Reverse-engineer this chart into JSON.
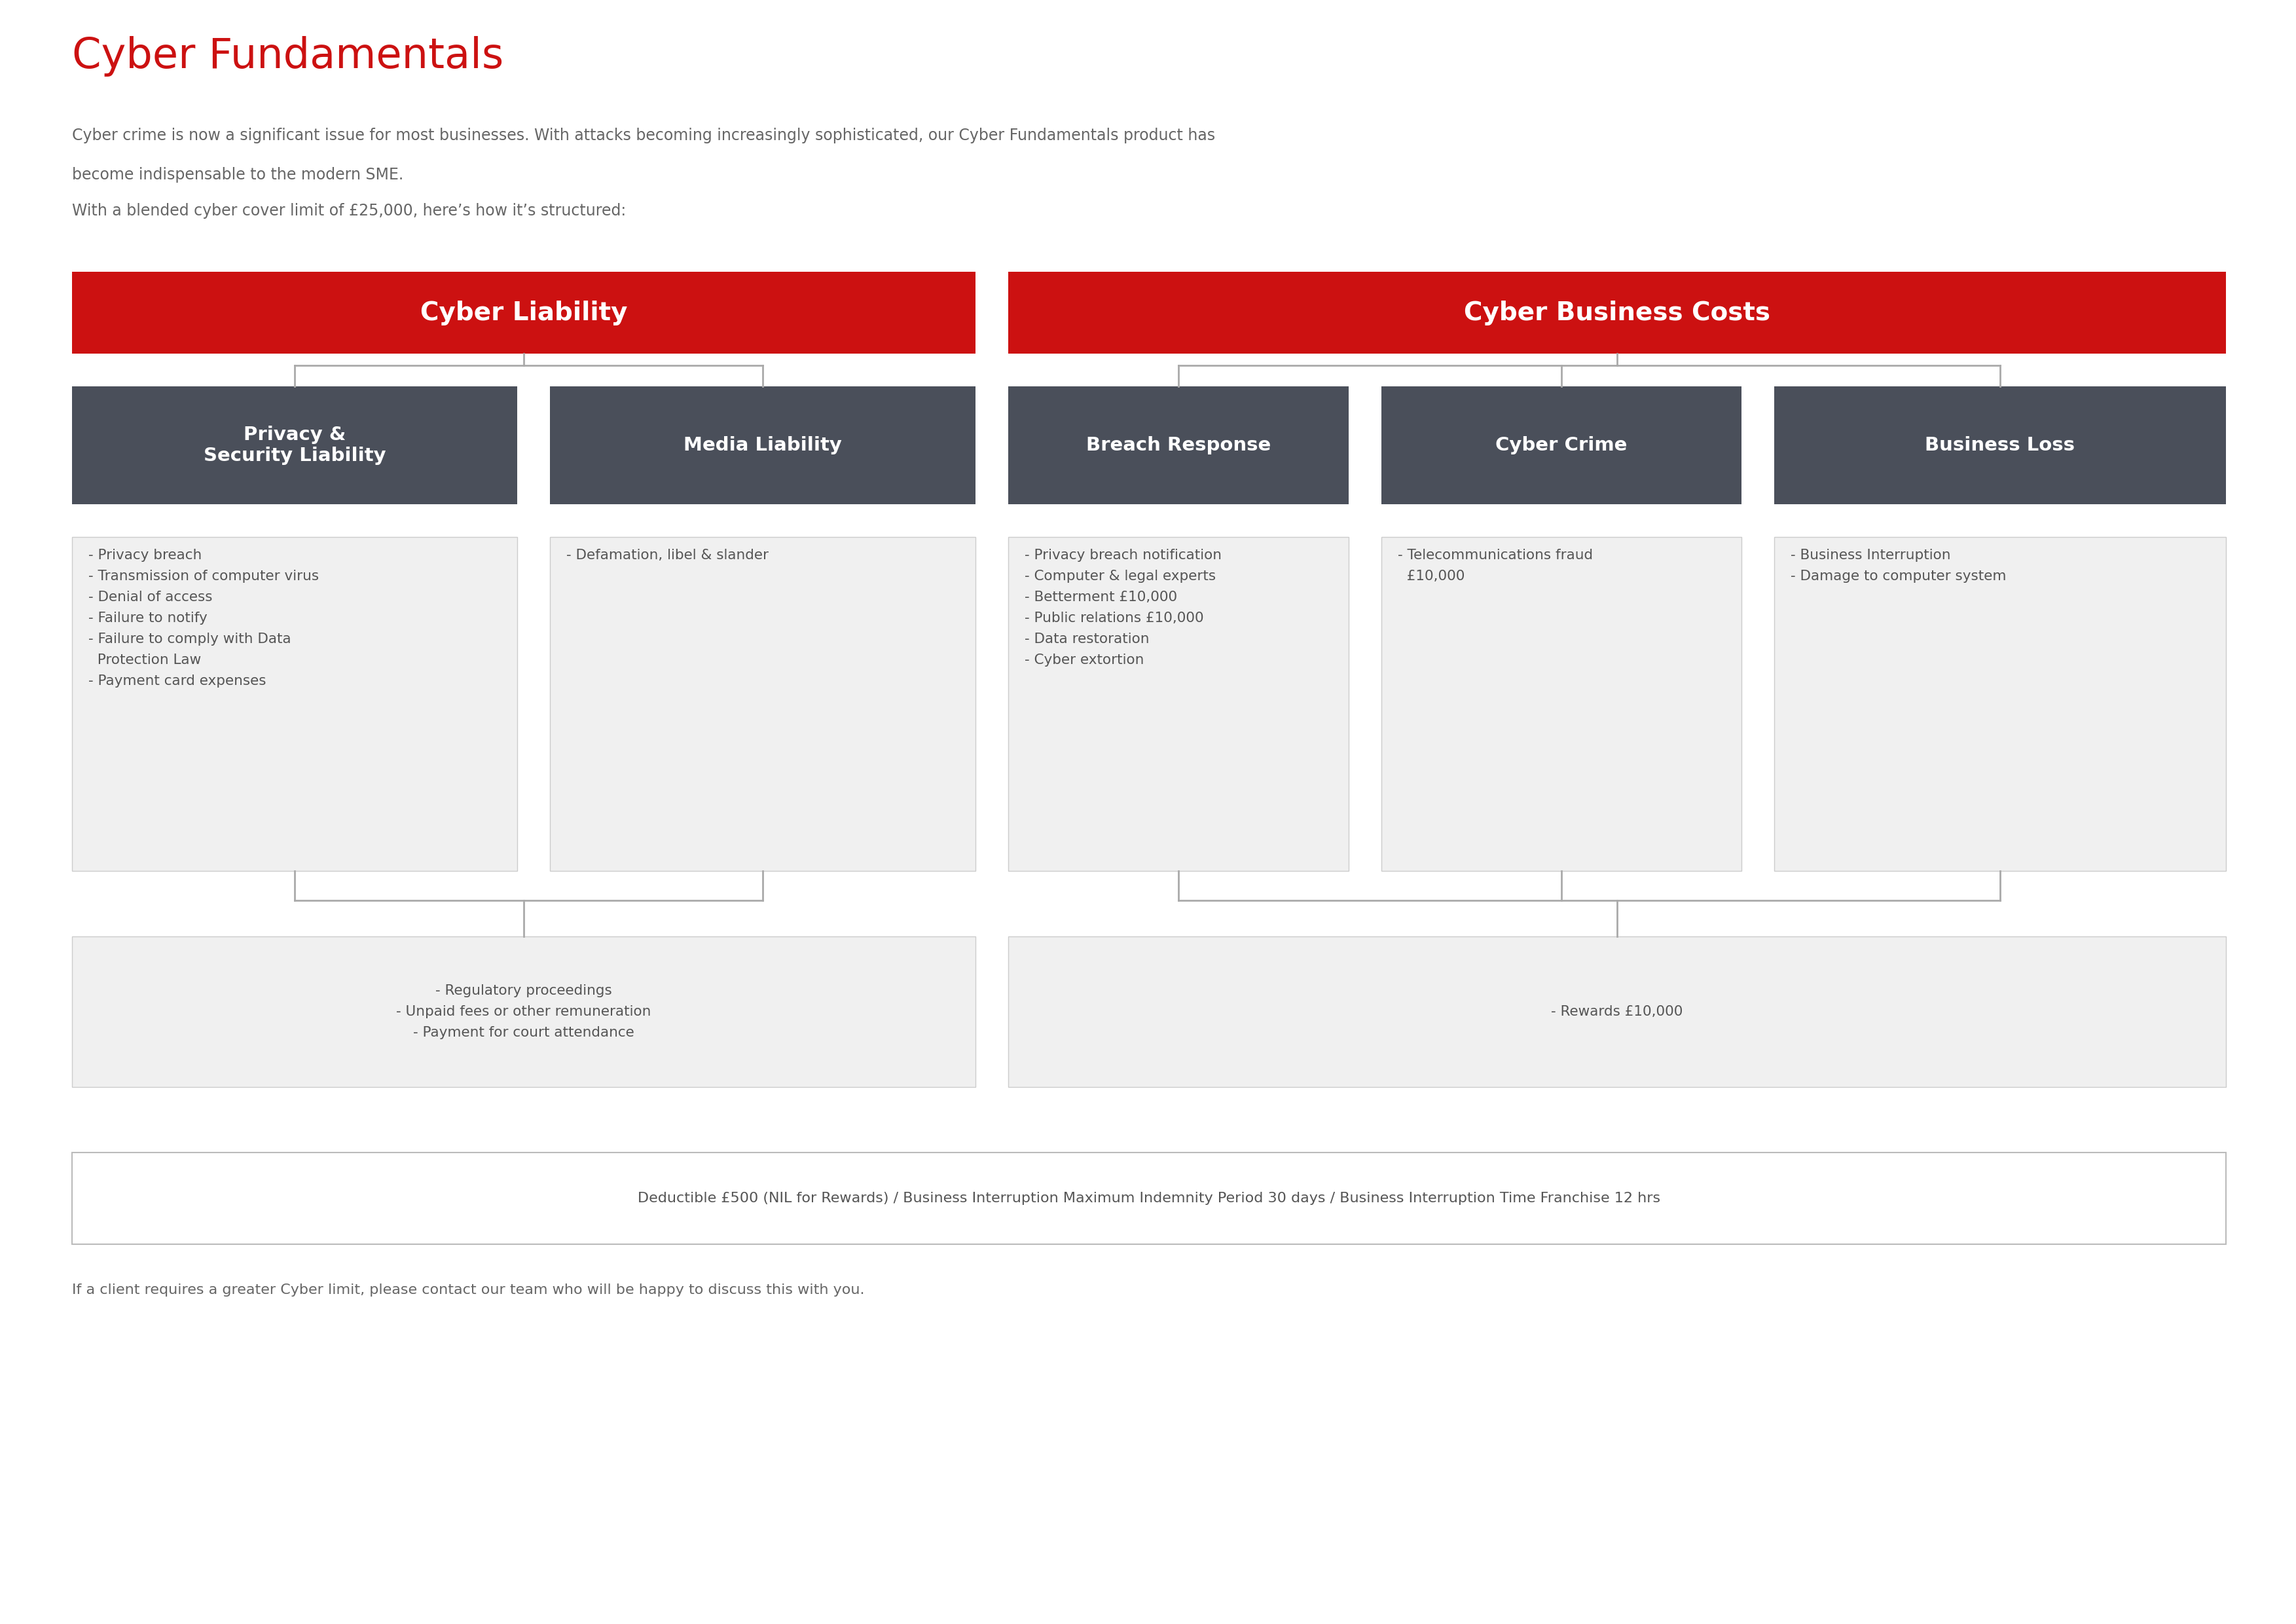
{
  "title": "Cyber Fundamentals",
  "subtitle_line1": "Cyber crime is now a significant issue for most businesses. With attacks becoming increasingly sophisticated, our Cyber Fundamentals product has",
  "subtitle_line2": "become indispensable to the modern SME.",
  "subtitle_line3": "With a blended cyber cover limit of £25,000, here’s how it’s structured:",
  "red_color": "#CC1111",
  "dark_box_color": "#4a4f5a",
  "light_box_fill": "#f0f0f0",
  "white": "#ffffff",
  "text_gray": "#666666",
  "text_medium": "#555555",
  "connector_color": "#aaaaaa",
  "left_header": "Cyber Liability",
  "right_header": "Cyber Business Costs",
  "sub_headers": [
    "Privacy &\nSecurity Liability",
    "Media Liability",
    "Breach Response",
    "Cyber Crime",
    "Business Loss"
  ],
  "left_detail_items": [
    "- Privacy breach",
    "- Transmission of computer virus",
    "- Denial of access",
    "- Failure to notify",
    "- Failure to comply with Data\n  Protection Law",
    "- Payment card expenses"
  ],
  "media_detail_items": [
    "- Defamation, libel & slander"
  ],
  "breach_detail_items": [
    "- Privacy breach notification",
    "- Computer & legal experts",
    "- Betterment £10,000",
    "- Public relations £10,000",
    "- Data restoration",
    "- Cyber extortion"
  ],
  "cyber_crime_items": [
    "- Telecommunications fraud\n  £10,000"
  ],
  "business_loss_items": [
    "- Business Interruption",
    "- Damage to computer system"
  ],
  "left_bottom_items": [
    "- Regulatory proceedings",
    "- Unpaid fees or other remuneration",
    "- Payment for court attendance"
  ],
  "right_bottom_items": [
    "- Rewards £10,000"
  ],
  "footer_text": "Deductible £500 (NIL for Rewards) / Business Interruption Maximum Indemnity Period 30 days / Business Interruption Time Franchise 12 hrs",
  "bottom_note": "If a client requires a greater Cyber limit, please contact our team who will be happy to discuss this with you."
}
